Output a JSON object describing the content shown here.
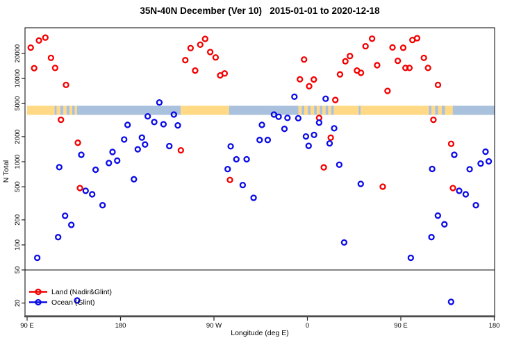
{
  "chart_data": {
    "type": "scatter",
    "title": "35N-40N December (Ver 10)   2015-01-01 to 2020-12-18",
    "xlabel": "Longitude (deg E)",
    "ylabel": "N Total",
    "x_axis": {
      "note": "axis spans 450 degrees of longitude, unwrapped 90E..180E..90W..0..90E..180E",
      "unwrapped_range": [
        90,
        540
      ],
      "ticks": [
        {
          "lon": 90,
          "label": "90 E"
        },
        {
          "lon": 180,
          "label": "180"
        },
        {
          "lon": 270,
          "label": "90 W"
        },
        {
          "lon": 360,
          "label": "0"
        },
        {
          "lon": 450,
          "label": "90 E"
        },
        {
          "lon": 540,
          "label": "180"
        }
      ]
    },
    "y_axis": {
      "scale": "log",
      "range": [
        14,
        40700
      ],
      "ticks": [
        20,
        50,
        100,
        200,
        500,
        1000,
        2000,
        5000,
        10000,
        20000
      ]
    },
    "reference_line_n": 50,
    "coast_band": {
      "n_top": 4700,
      "n_bottom": 3650,
      "land_color": "#FFD985",
      "ocean_color": "#A9C1DD",
      "segments": [
        {
          "from": 90,
          "to": 116.5,
          "type": "land"
        },
        {
          "from": 116.5,
          "to": 118.5,
          "type": "ocean"
        },
        {
          "from": 118.5,
          "to": 122,
          "type": "land"
        },
        {
          "from": 122,
          "to": 125,
          "type": "ocean"
        },
        {
          "from": 125,
          "to": 128,
          "type": "land"
        },
        {
          "from": 128,
          "to": 131,
          "type": "ocean"
        },
        {
          "from": 131,
          "to": 133.5,
          "type": "land"
        },
        {
          "from": 133.5,
          "to": 136,
          "type": "ocean"
        },
        {
          "from": 136,
          "to": 138,
          "type": "land"
        },
        {
          "from": 138,
          "to": 238,
          "type": "ocean"
        },
        {
          "from": 238,
          "to": 284.5,
          "type": "land"
        },
        {
          "from": 284.5,
          "to": 351.5,
          "type": "ocean"
        },
        {
          "from": 351.5,
          "to": 354.5,
          "type": "land"
        },
        {
          "from": 354.5,
          "to": 357,
          "type": "ocean"
        },
        {
          "from": 357,
          "to": 360.5,
          "type": "land"
        },
        {
          "from": 360.5,
          "to": 363,
          "type": "ocean"
        },
        {
          "from": 363,
          "to": 366.5,
          "type": "land"
        },
        {
          "from": 366.5,
          "to": 369,
          "type": "ocean"
        },
        {
          "from": 369,
          "to": 372,
          "type": "land"
        },
        {
          "from": 372,
          "to": 374.5,
          "type": "ocean"
        },
        {
          "from": 374.5,
          "to": 377.5,
          "type": "land"
        },
        {
          "from": 377.5,
          "to": 380,
          "type": "ocean"
        },
        {
          "from": 380,
          "to": 383,
          "type": "land"
        },
        {
          "from": 383,
          "to": 385.5,
          "type": "ocean"
        },
        {
          "from": 385.5,
          "to": 409.3,
          "type": "land"
        },
        {
          "from": 409.3,
          "to": 411.3,
          "type": "ocean"
        },
        {
          "from": 411.3,
          "to": 477,
          "type": "land"
        },
        {
          "from": 477,
          "to": 479.5,
          "type": "ocean"
        },
        {
          "from": 479.5,
          "to": 483,
          "type": "land"
        },
        {
          "from": 483,
          "to": 486,
          "type": "ocean"
        },
        {
          "from": 486,
          "to": 489.5,
          "type": "land"
        },
        {
          "from": 489.5,
          "to": 492.5,
          "type": "ocean"
        },
        {
          "from": 492.5,
          "to": 500,
          "type": "land"
        },
        {
          "from": 500,
          "to": 540,
          "type": "ocean"
        }
      ]
    },
    "series": [
      {
        "name": "Land (Nadir&Glint)",
        "color": "#F40000",
        "points": [
          [
            93.5,
            23500
          ],
          [
            96.8,
            13300
          ],
          [
            101.4,
            28600
          ],
          [
            107.6,
            31000
          ],
          [
            113,
            17700
          ],
          [
            117,
            13400
          ],
          [
            122.6,
            3190
          ],
          [
            127.5,
            8370
          ],
          [
            138.9,
            1690
          ],
          [
            140.9,
            482
          ],
          [
            238.1,
            1370
          ],
          [
            242.4,
            16600
          ],
          [
            247.5,
            23200
          ],
          [
            251.9,
            12450
          ],
          [
            256.8,
            25500
          ],
          [
            261.5,
            29900
          ],
          [
            266.4,
            20800
          ],
          [
            271.6,
            17900
          ],
          [
            276,
            10900
          ],
          [
            280.3,
            11500
          ],
          [
            285.4,
            604
          ],
          [
            352.8,
            9780
          ],
          [
            356.8,
            16900
          ],
          [
            361.7,
            8070
          ],
          [
            366.2,
            9720
          ],
          [
            371.3,
            3360
          ],
          [
            375.8,
            855
          ],
          [
            382.5,
            1945
          ],
          [
            386.9,
            5520
          ],
          [
            391.4,
            11200
          ],
          [
            396.6,
            16100
          ],
          [
            401,
            18600
          ],
          [
            407.8,
            12450
          ],
          [
            411.6,
            11700
          ],
          [
            416,
            24400
          ],
          [
            422.3,
            30100
          ],
          [
            427.2,
            14450
          ],
          [
            432.6,
            501
          ],
          [
            437.2,
            7090
          ],
          [
            442,
            23600
          ],
          [
            447.1,
            16300
          ],
          [
            452.3,
            23400
          ],
          [
            454.5,
            13400
          ],
          [
            458.3,
            13400
          ],
          [
            461.2,
            29000
          ],
          [
            465.7,
            30500
          ],
          [
            472.2,
            17700
          ],
          [
            476.2,
            13400
          ],
          [
            481.4,
            3190
          ],
          [
            485.8,
            8370
          ],
          [
            498.5,
            1640
          ],
          [
            500.2,
            482
          ]
        ]
      },
      {
        "name": "Ocean (Glint)",
        "color": "#0B0BE8",
        "points": [
          [
            99.8,
            70
          ],
          [
            119.9,
            124
          ],
          [
            121,
            860
          ],
          [
            126.6,
            224
          ],
          [
            132.6,
            174
          ],
          [
            138.2,
            21.5
          ],
          [
            142.2,
            1210
          ],
          [
            146.4,
            447
          ],
          [
            152.7,
            406
          ],
          [
            156,
            800
          ],
          [
            162.7,
            300
          ],
          [
            168.8,
            964
          ],
          [
            172.3,
            1310
          ],
          [
            176.8,
            1030
          ],
          [
            183.5,
            1850
          ],
          [
            186.8,
            2770
          ],
          [
            192.9,
            615
          ],
          [
            196.6,
            1410
          ],
          [
            200.6,
            1950
          ],
          [
            203.6,
            1610
          ],
          [
            206.2,
            3510
          ],
          [
            212.5,
            3000
          ],
          [
            217.4,
            5150
          ],
          [
            221.4,
            2820
          ],
          [
            227,
            1540
          ],
          [
            231.4,
            3690
          ],
          [
            235.2,
            2730
          ],
          [
            283.2,
            815
          ],
          [
            286.1,
            1530
          ],
          [
            291.6,
            1070
          ],
          [
            297.7,
            524
          ],
          [
            301.5,
            1070
          ],
          [
            308.2,
            368
          ],
          [
            314,
            1824
          ],
          [
            316.2,
            2770
          ],
          [
            321.8,
            1824
          ],
          [
            327.8,
            3690
          ],
          [
            332.3,
            3470
          ],
          [
            337.9,
            2480
          ],
          [
            340.8,
            3360
          ],
          [
            347.5,
            6040
          ],
          [
            351.2,
            3330
          ],
          [
            358.6,
            2010
          ],
          [
            361.2,
            1550
          ],
          [
            366.4,
            2100
          ],
          [
            371.3,
            2950
          ],
          [
            377.6,
            5710
          ],
          [
            381.4,
            1660
          ],
          [
            385.8,
            2520
          ],
          [
            390.7,
            920
          ],
          [
            395.4,
            107
          ],
          [
            411.4,
            541
          ],
          [
            459.6,
            70
          ],
          [
            479.5,
            124
          ],
          [
            480.2,
            818
          ],
          [
            485.7,
            225
          ],
          [
            492,
            177
          ],
          [
            498.4,
            20.7
          ],
          [
            501.5,
            1210
          ],
          [
            506.2,
            447
          ],
          [
            512.5,
            406
          ],
          [
            516.3,
            812
          ],
          [
            522.3,
            300
          ],
          [
            526.9,
            950
          ],
          [
            531.6,
            1320
          ],
          [
            534.7,
            1010
          ]
        ]
      }
    ],
    "legend": {
      "position": "bottom-left",
      "items": [
        "Land (Nadir&Glint)",
        "Ocean (Glint)"
      ]
    }
  }
}
